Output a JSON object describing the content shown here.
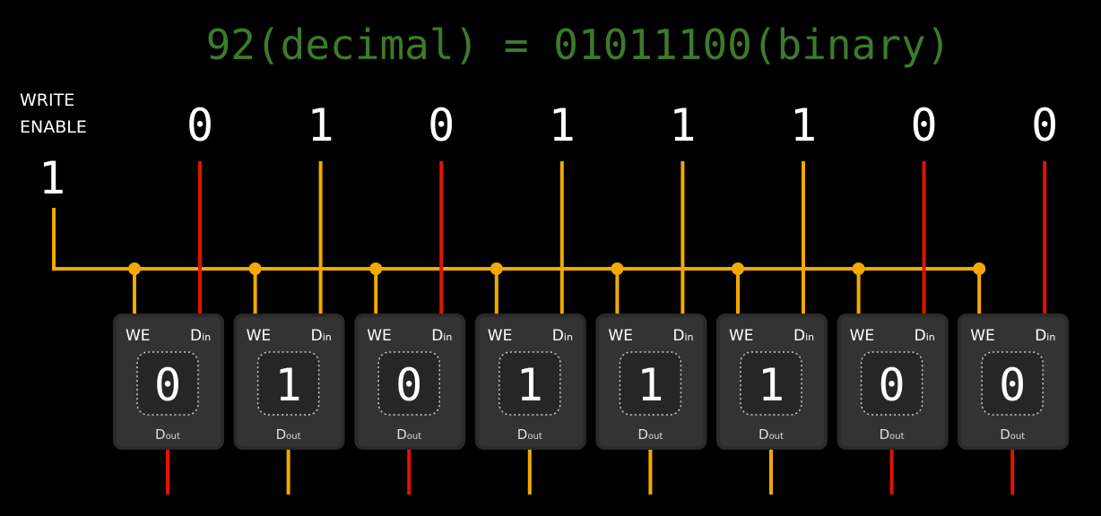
{
  "title": "92(decimal) = 01011100(binary)",
  "write_enable": {
    "label_line1": "WRITE",
    "label_line2": "ENABLE",
    "value": "1"
  },
  "input_bits": [
    "0",
    "1",
    "0",
    "1",
    "1",
    "1",
    "0",
    "0"
  ],
  "cells": [
    {
      "we_label": "WE",
      "din_label": "D",
      "din_sub": "in",
      "dout_label": "D",
      "dout_sub": "out",
      "stored": "0"
    },
    {
      "we_label": "WE",
      "din_label": "D",
      "din_sub": "in",
      "dout_label": "D",
      "dout_sub": "out",
      "stored": "1"
    },
    {
      "we_label": "WE",
      "din_label": "D",
      "din_sub": "in",
      "dout_label": "D",
      "dout_sub": "out",
      "stored": "0"
    },
    {
      "we_label": "WE",
      "din_label": "D",
      "din_sub": "in",
      "dout_label": "D",
      "dout_sub": "out",
      "stored": "1"
    },
    {
      "we_label": "WE",
      "din_label": "D",
      "din_sub": "in",
      "dout_label": "D",
      "dout_sub": "out",
      "stored": "1"
    },
    {
      "we_label": "WE",
      "din_label": "D",
      "din_sub": "in",
      "dout_label": "D",
      "dout_sub": "out",
      "stored": "1"
    },
    {
      "we_label": "WE",
      "din_label": "D",
      "din_sub": "in",
      "dout_label": "D",
      "dout_sub": "out",
      "stored": "0"
    },
    {
      "we_label": "WE",
      "din_label": "D",
      "din_sub": "in",
      "dout_label": "D",
      "dout_sub": "out",
      "stored": "0"
    }
  ],
  "colors": {
    "one": "#f2a900",
    "zero": "#e01400",
    "title": "#3d7a2b",
    "cell": "#3a3a3a",
    "text": "#ffffff"
  }
}
